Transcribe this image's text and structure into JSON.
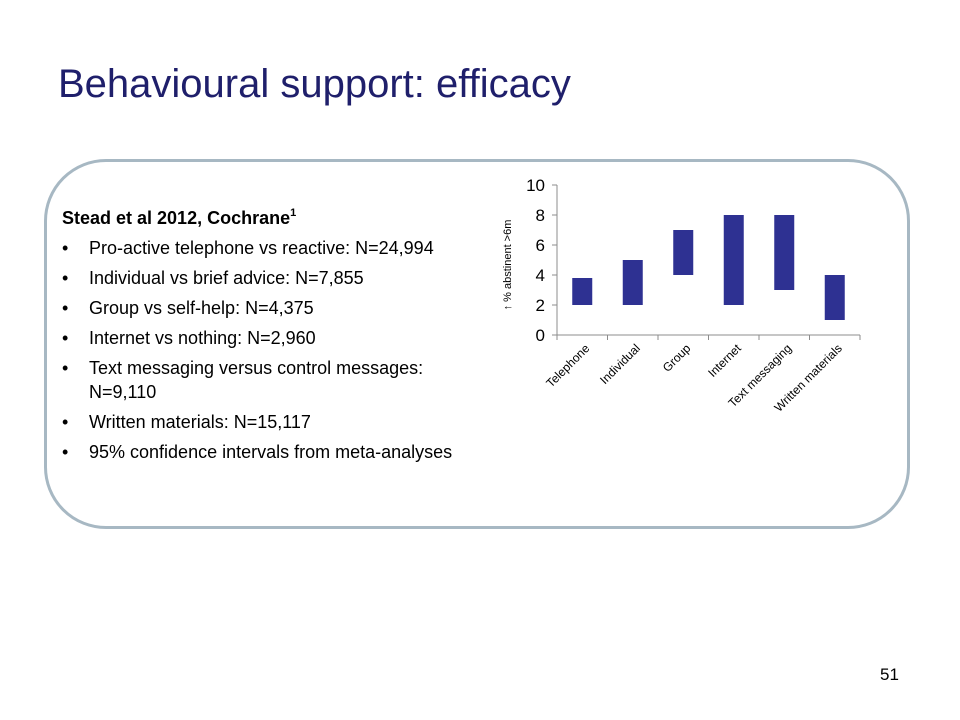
{
  "slide": {
    "title": "Behavioural support: efficacy",
    "page_number": "51"
  },
  "text_panel": {
    "heading": "Stead et al 2012, Cochrane",
    "heading_superscript": "1",
    "bullet_symbol": "•",
    "bullets": [
      "Pro-active telephone vs reactive: N=24,994",
      "Individual vs brief advice: N=7,855",
      "Group vs self-help: N=4,375",
      "Internet vs nothing: N=2,960",
      "Text messaging versus control messages: N=9,110",
      "Written materials: N=15,117",
      "95% confidence intervals from meta-analyses"
    ]
  },
  "colors": {
    "title": "#1f1f6b",
    "bar": "#2e3192",
    "frame": "#a7b8c3"
  },
  "chart_data": {
    "type": "bar",
    "subtype": "floating-range",
    "categories": [
      "Telephone",
      "Individual",
      "Group",
      "Internet",
      "Text messaging",
      "Written materials"
    ],
    "ranges": [
      [
        2,
        3.8
      ],
      [
        2,
        5
      ],
      [
        4,
        7
      ],
      [
        2,
        8
      ],
      [
        3,
        8
      ],
      [
        1,
        4
      ]
    ],
    "ylabel": "↑ % abstinent >6m",
    "xlabel": "",
    "ylim": [
      0,
      10
    ],
    "yticks": [
      0,
      2,
      4,
      6,
      8,
      10
    ],
    "grid": false,
    "legend": "none"
  }
}
